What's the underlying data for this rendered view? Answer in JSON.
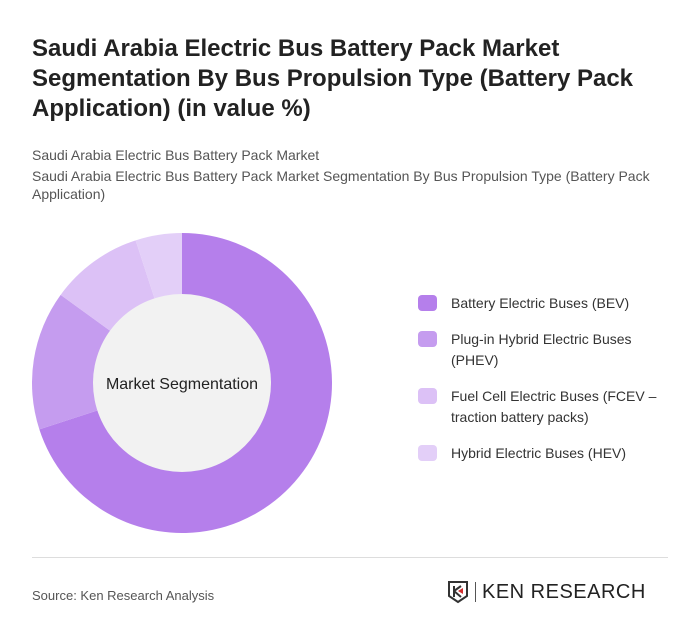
{
  "title": "Saudi Arabia Electric Bus Battery Pack Market Segmentation By Bus Propulsion Type (Battery Pack Application) (in value %)",
  "subtitle1": "Saudi Arabia Electric Bus Battery Pack Market",
  "subtitle2": "Saudi Arabia Electric Bus Battery Pack Market Segmentation By Bus Propulsion Type (Battery Pack Application)",
  "chart_data": {
    "type": "pie",
    "donut": true,
    "center_label": "Market Segmentation",
    "categories": [
      "Battery Electric Buses (BEV)",
      "Plug-in Hybrid Electric Buses (PHEV)",
      "Fuel Cell Electric Buses (FCEV – traction battery packs)",
      "Hybrid Electric Buses (HEV)"
    ],
    "values": [
      70,
      15,
      10,
      5
    ],
    "colors": [
      "#b57feb",
      "#c59cef",
      "#dcc1f6",
      "#e3cff8"
    ],
    "legend_position": "right"
  },
  "footer": {
    "source": "Source: Ken Research Analysis",
    "logo_text": "KEN RESEARCH"
  }
}
